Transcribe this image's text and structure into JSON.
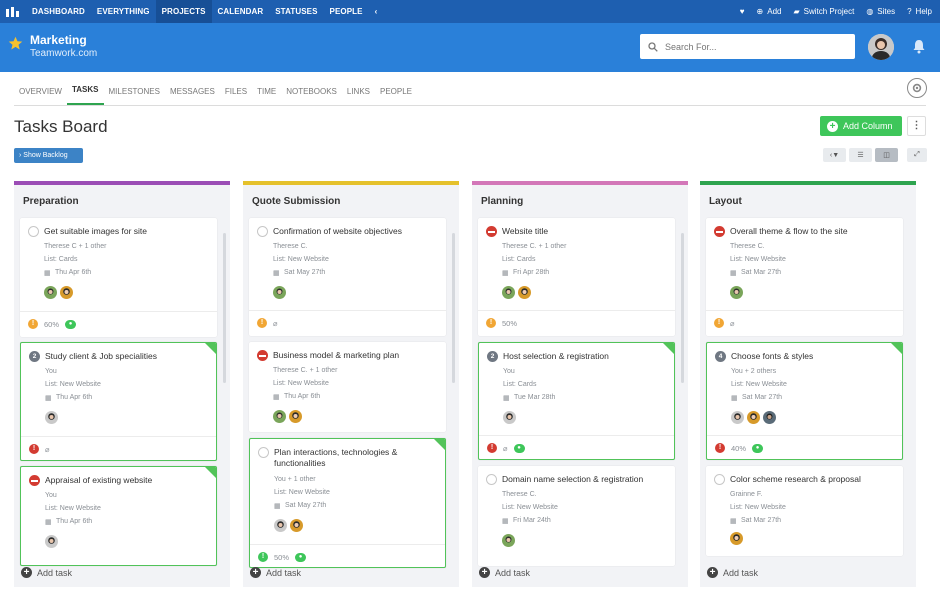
{
  "topnav": {
    "items": [
      "DASHBOARD",
      "EVERYTHING",
      "PROJECTS",
      "CALENDAR",
      "STATUSES",
      "PEOPLE"
    ],
    "active": "PROJECTS",
    "add_label": "Add",
    "switch_label": "Switch Project",
    "sites_label": "Sites",
    "help_label": "Help"
  },
  "header": {
    "project_name": "Marketing",
    "company": "Teamwork.com",
    "search_placeholder": "Search For..."
  },
  "tabs": [
    "OVERVIEW",
    "TASKS",
    "MILESTONES",
    "MESSAGES",
    "FILES",
    "TIME",
    "NOTEBOOKS",
    "LINKS",
    "PEOPLE"
  ],
  "page": {
    "title": "Tasks Board",
    "add_column_label": "Add Column",
    "backlog_label": "› Show Backlog"
  },
  "columns": [
    {
      "title": "Preparation",
      "color": "#9b4db5",
      "add_label": "Add task",
      "cards": [
        {
          "title": "Get suitable images for site",
          "assignee": "Therese C + 1 other",
          "list": "List: Cards",
          "date": "Thu Apr 6th",
          "status": "open",
          "progress": "60%"
        },
        {
          "title": "Study client & Job specialities",
          "assignee": "You",
          "list": "List: New Website",
          "date": "Thu Apr 6th",
          "status": "num",
          "num": "2"
        },
        {
          "title": "Appraisal of existing website",
          "assignee": "You",
          "list": "List: New Website",
          "date": "Thu Apr 6th",
          "status": "stop"
        }
      ]
    },
    {
      "title": "Quote Submission",
      "color": "#e5c12c",
      "add_label": "Add task",
      "cards": [
        {
          "title": "Confirmation of website objectives",
          "assignee": "Therese C.",
          "list": "List: New Website",
          "date": "Sat May 27th",
          "status": "open"
        },
        {
          "title": "Business model & marketing plan",
          "assignee": "Therese C. + 1 other",
          "list": "List: New Website",
          "date": "Thu Apr 6th",
          "status": "stop"
        },
        {
          "title": "Plan interactions, technologies & functionalities",
          "assignee": "You + 1 other",
          "list": "List: New Website",
          "date": "Sat May 27th",
          "status": "open",
          "progress": "50%"
        }
      ]
    },
    {
      "title": "Planning",
      "color": "#d377b8",
      "add_label": "Add task",
      "cards": [
        {
          "title": "Website title",
          "assignee": "Therese C. + 1 other",
          "list": "List: Cards",
          "date": "Fri Apr 28th",
          "status": "stop",
          "progress": "50%"
        },
        {
          "title": "Host selection & registration",
          "assignee": "You",
          "list": "List: Cards",
          "date": "Tue Mar 28th",
          "status": "num",
          "num": "2"
        },
        {
          "title": "Domain name selection & registration",
          "assignee": "Therese C.",
          "list": "List: New Website",
          "date": "Fri Mar 24th",
          "status": "open"
        }
      ]
    },
    {
      "title": "Layout",
      "color": "#2ea44f",
      "add_label": "Add task",
      "cards": [
        {
          "title": "Overall theme & flow to the site",
          "assignee": "Therese C.",
          "list": "List: New Website",
          "date": "Sat Mar 27th",
          "status": "stop"
        },
        {
          "title": "Choose fonts & styles",
          "assignee": "You + 2 others",
          "list": "List: New Website",
          "date": "Sat Mar 27th",
          "status": "num",
          "num": "4",
          "progress": "40%"
        },
        {
          "title": "Color scheme research & proposal",
          "assignee": "Grainne F.",
          "list": "List: New Website",
          "date": "Sat Mar 27th",
          "status": "open"
        }
      ]
    }
  ]
}
